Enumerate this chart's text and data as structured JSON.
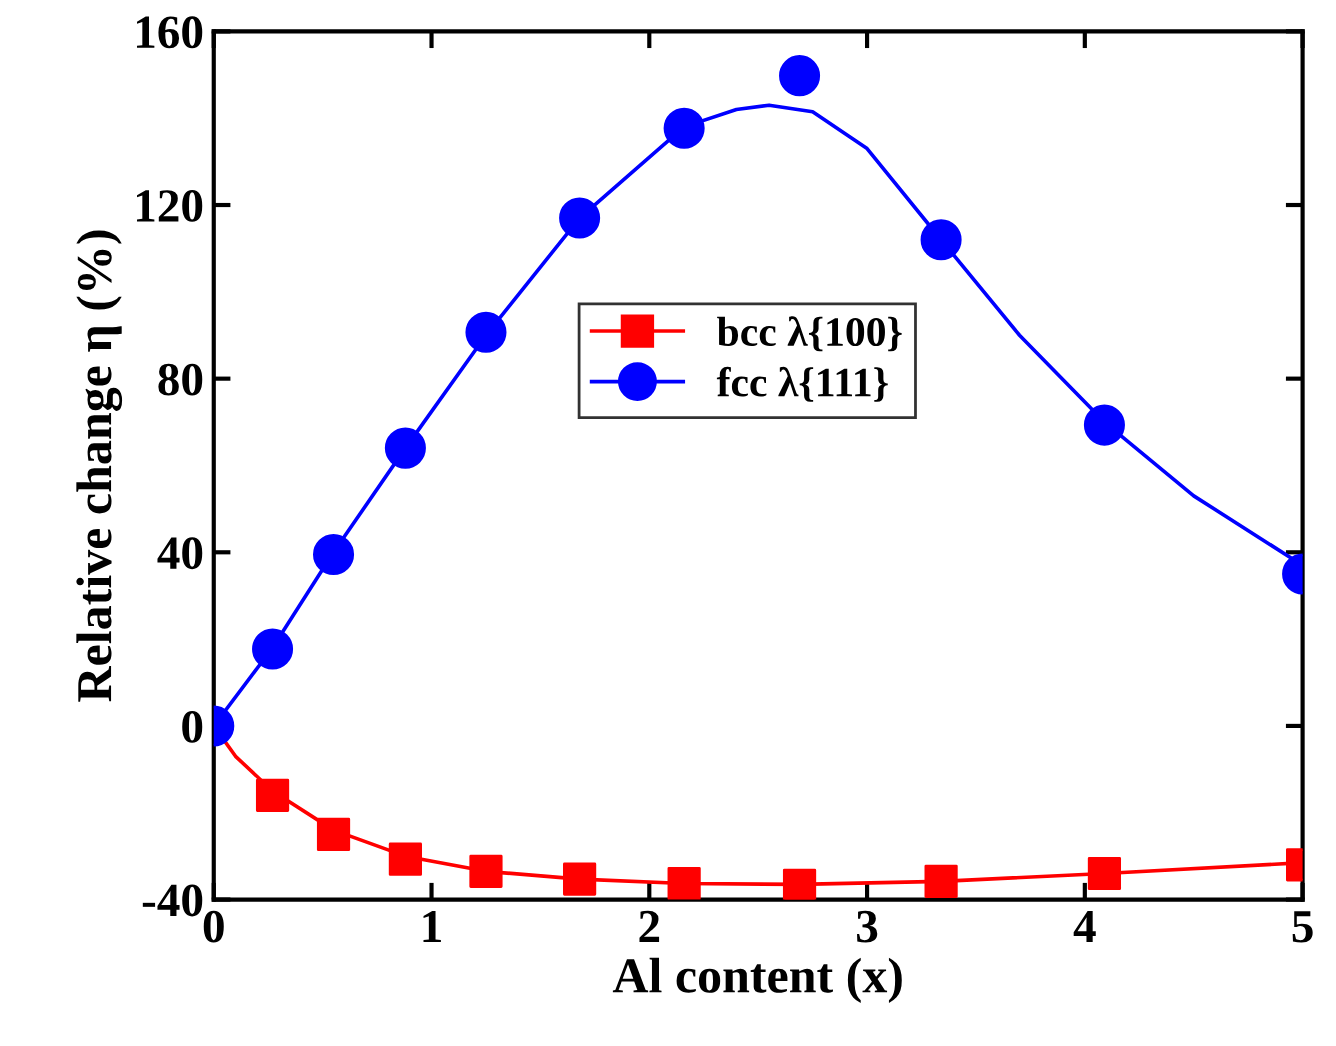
{
  "chart_data": {
    "type": "scatter",
    "xlabel": "Al content (x)",
    "ylabel": "Relative change η (%)",
    "xlim": [
      0,
      5
    ],
    "ylim": [
      -40,
      160
    ],
    "xticks": [
      0,
      1,
      2,
      3,
      4,
      5
    ],
    "yticks": [
      -40,
      0,
      40,
      80,
      120,
      160
    ],
    "grid": false,
    "legend": "top",
    "series": [
      {
        "name": "bcc λ{100}",
        "marker": "square",
        "color": "#ff0000",
        "x": [
          0.27,
          0.55,
          0.88,
          1.25,
          1.68,
          2.16,
          2.69,
          3.34,
          4.09,
          5
        ],
        "values": [
          -16,
          -25,
          -30.7,
          -33.5,
          -35.3,
          -36.3,
          -36.7,
          -35.8,
          -34,
          -32
        ]
      },
      {
        "name": "fcc λ{111}",
        "marker": "circle",
        "color": "#0000ff",
        "x": [
          0,
          0.27,
          0.55,
          0.88,
          1.25,
          1.68,
          2.16,
          2.69,
          3.34,
          4.09,
          5
        ],
        "values": [
          0,
          17.7,
          39.5,
          64,
          90.7,
          117,
          137.7,
          149.8,
          112,
          69.3,
          35
        ]
      },
      {
        "type": "line",
        "color": "#ff0000",
        "x": [
          0,
          0.1,
          0.27,
          0.55,
          0.88,
          1.25,
          1.68,
          2.16,
          2.69,
          3.34,
          4.09,
          5
        ],
        "values": [
          0,
          -7,
          -15,
          -24,
          -30,
          -33.5,
          -35.3,
          -36.3,
          -36.5,
          -35.8,
          -34,
          -31.5
        ]
      },
      {
        "type": "line",
        "color": "#0000ff",
        "x": [
          0,
          0.27,
          0.55,
          0.88,
          1.25,
          1.68,
          2.16,
          2.4,
          2.55,
          2.75,
          3.0,
          3.34,
          3.7,
          4.09,
          4.5,
          5
        ],
        "values": [
          0,
          18,
          40,
          64,
          90,
          117,
          138,
          142,
          143,
          141.5,
          133,
          112,
          90,
          70,
          53,
          37
        ]
      }
    ]
  }
}
